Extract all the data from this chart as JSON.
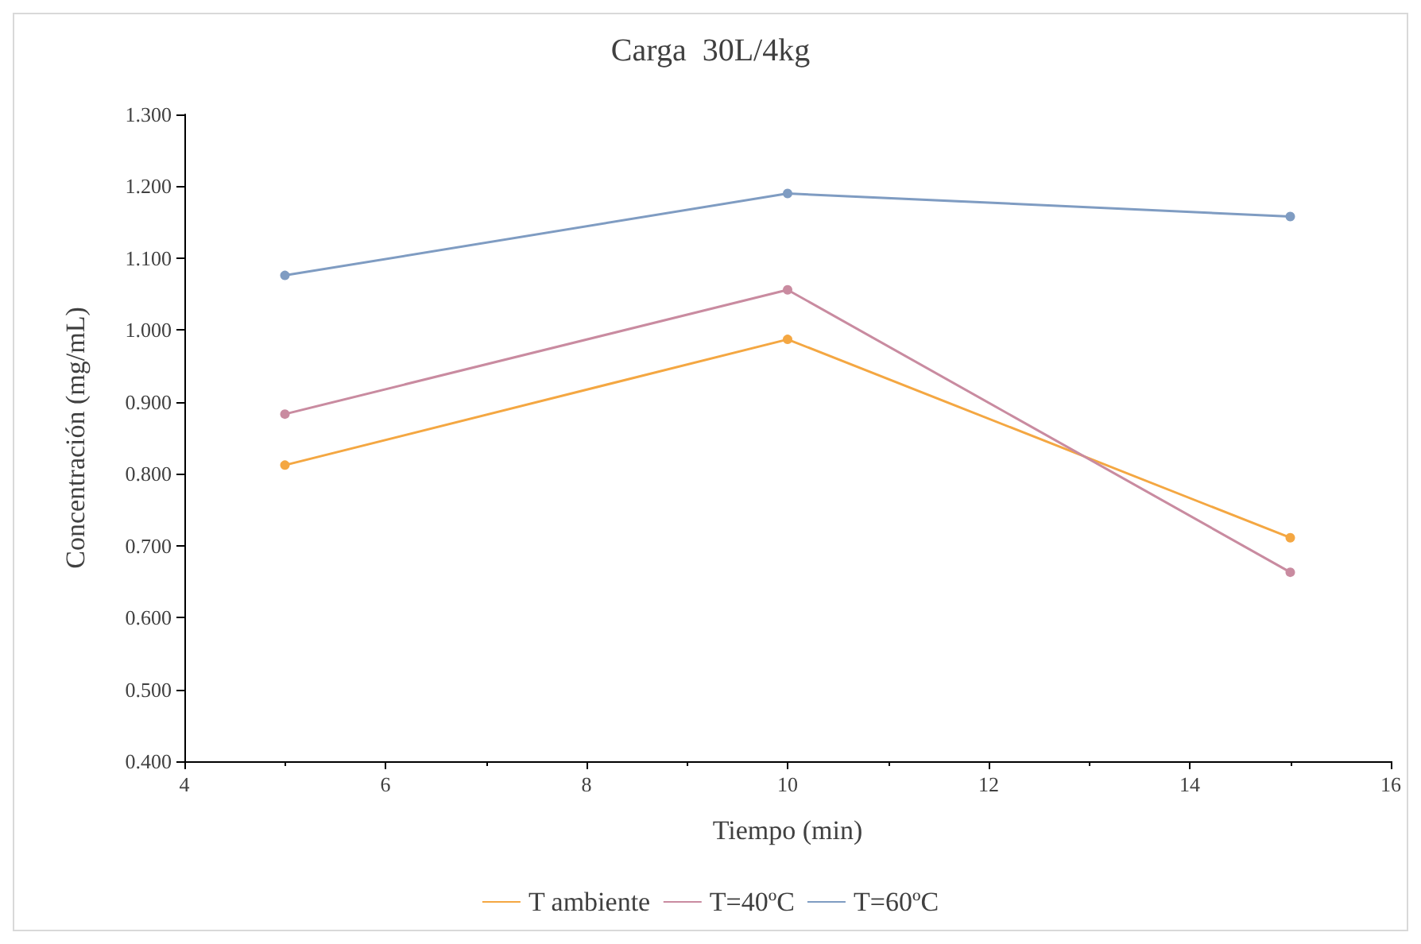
{
  "chart_data": {
    "type": "line",
    "title": "Carga  30L/4kg",
    "xlabel": "Tiempo (min)",
    "ylabel": "Concentración (mg/mL)",
    "x": [
      5,
      10,
      15
    ],
    "series": [
      {
        "name": "T ambiente",
        "color": "#f4a742",
        "values": [
          0.812,
          0.987,
          0.711
        ]
      },
      {
        "name": "T=40ºC",
        "color": "#c98ba0",
        "values": [
          0.883,
          1.056,
          0.663
        ]
      },
      {
        "name": "T=60ºC",
        "color": "#7f9cc2",
        "values": [
          1.076,
          1.19,
          1.158
        ]
      }
    ],
    "xlim": [
      4,
      16
    ],
    "xticks": [
      4,
      6,
      8,
      10,
      12,
      14,
      16
    ],
    "ylim": [
      0.4,
      1.3
    ],
    "yticks": [
      {
        "value": 0.4,
        "label": "0.400"
      },
      {
        "value": 0.5,
        "label": "0.500"
      },
      {
        "value": 0.6,
        "label": "0.600"
      },
      {
        "value": 0.7,
        "label": "0.700"
      },
      {
        "value": 0.8,
        "label": "0.800"
      },
      {
        "value": 0.9,
        "label": "0.900"
      },
      {
        "value": 1.0,
        "label": "1.000"
      },
      {
        "value": 1.1,
        "label": "1.100"
      },
      {
        "value": 1.2,
        "label": "1.200"
      },
      {
        "value": 1.3,
        "label": "1.300"
      }
    ],
    "grid": false,
    "legend": "bottom",
    "marker": "circle",
    "line_style": "solid"
  }
}
